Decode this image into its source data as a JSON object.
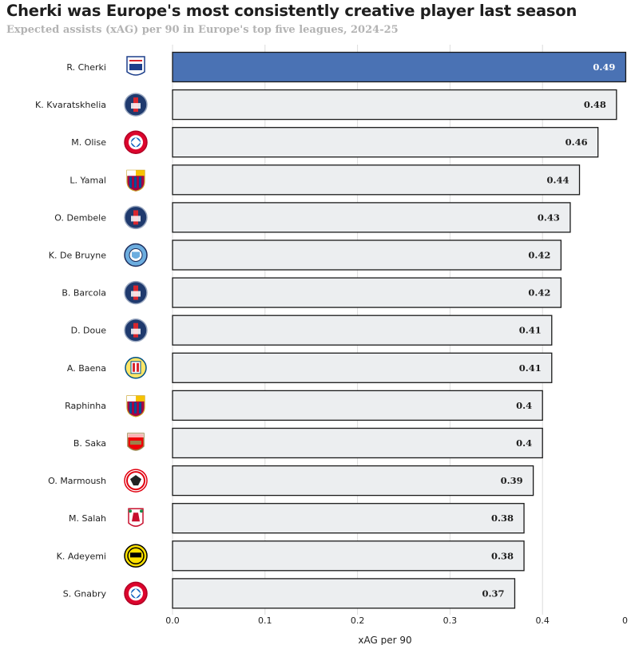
{
  "title": "Cherki was Europe's most consistently creative player last season",
  "subtitle": "Expected assists (xAG) per 90 in Europe's top five leagues, 2024-25",
  "chart_data": {
    "type": "bar",
    "orientation": "horizontal",
    "categories": [
      "R. Cherki",
      "K. Kvaratskhelia",
      "M. Olise",
      "L. Yamal",
      "O. Dembele",
      "K. De Bruyne",
      "B. Barcola",
      "D. Doue",
      "A. Baena",
      "Raphinha",
      "B. Saka",
      "O. Marmoush",
      "M. Salah",
      "K. Adeyemi",
      "S. Gnabry"
    ],
    "values": [
      0.49,
      0.48,
      0.46,
      0.44,
      0.43,
      0.42,
      0.42,
      0.41,
      0.41,
      0.4,
      0.4,
      0.39,
      0.38,
      0.38,
      0.37
    ],
    "value_labels": [
      "0.49",
      "0.48",
      "0.46",
      "0.44",
      "0.43",
      "0.42",
      "0.42",
      "0.41",
      "0.41",
      "0.4",
      "0.4",
      "0.39",
      "0.38",
      "0.38",
      "0.37"
    ],
    "club_icons": [
      "lyon-crest-icon",
      "psg-crest-icon",
      "bayern-crest-icon",
      "barcelona-crest-icon",
      "psg-crest-icon",
      "man-city-crest-icon",
      "psg-crest-icon",
      "psg-crest-icon",
      "villarreal-crest-icon",
      "barcelona-crest-icon",
      "arsenal-crest-icon",
      "frankfurt-crest-icon",
      "liverpool-crest-icon",
      "dortmund-crest-icon",
      "bayern-crest-icon"
    ],
    "highlight_index": 0,
    "xlabel": "xAG per 90",
    "xticks": [
      "0.0",
      "0.1",
      "0.2",
      "0.3",
      "0.4",
      "0"
    ],
    "xlim": [
      0,
      0.49
    ],
    "grid": true,
    "colors": {
      "highlight_bar": "#4a72b4",
      "bar": "#eceef0",
      "bar_border": "#1a1a1a",
      "grid": "#dcdcdc"
    }
  },
  "club_colors": {
    "psg": {
      "bg": "#1f3a6e",
      "accent": "#d8262e"
    },
    "bayern": {
      "bg": "#ffffff",
      "accent": "#dc052d"
    },
    "barcelona": {
      "bg": "#a50044",
      "accent": "#004d98"
    },
    "lyon": {
      "bg": "#ffffff",
      "accent": "#1d3f8b"
    },
    "man_city": {
      "bg": "#6caddf",
      "accent": "#1c2c5b"
    },
    "villarreal": {
      "bg": "#ffe667",
      "accent": "#005187"
    },
    "arsenal": {
      "bg": "#ef0107",
      "accent": "#9c824a"
    },
    "frankfurt": {
      "bg": "#ffffff",
      "accent": "#e1000f"
    },
    "liverpool": {
      "bg": "#ffffff",
      "accent": "#c8102e"
    },
    "dortmund": {
      "bg": "#fde100",
      "accent": "#000000"
    }
  }
}
